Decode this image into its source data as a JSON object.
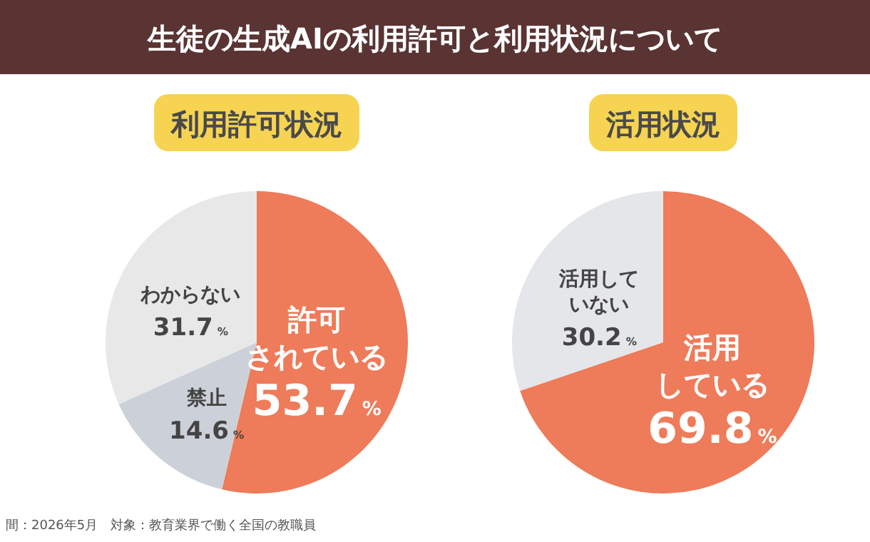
{
  "chart_data": [
    {
      "type": "other",
      "title": "生徒の生成AIの利用許可と利用状況について",
      "annotations": [
        "間：2026年5月　対象：教育業界で働く全国の教職員"
      ]
    },
    {
      "type": "pie",
      "title": "利用許可状況",
      "categories": [
        "許可されている",
        "禁止",
        "わからない"
      ],
      "values": [
        53.7,
        14.6,
        31.7
      ],
      "colors": [
        "#ee7b59",
        "#ccd1d9",
        "#e8e8e8"
      ],
      "value_labels": [
        "53.7%",
        "14.6%",
        "31.7%"
      ]
    },
    {
      "type": "pie",
      "title": "活用状況",
      "categories": [
        "活用している",
        "活用していない"
      ],
      "values": [
        69.8,
        30.2
      ],
      "colors": [
        "#ee7b59",
        "#e4e6e9"
      ],
      "value_labels": [
        "69.8%",
        "30.2%"
      ]
    }
  ]
}
